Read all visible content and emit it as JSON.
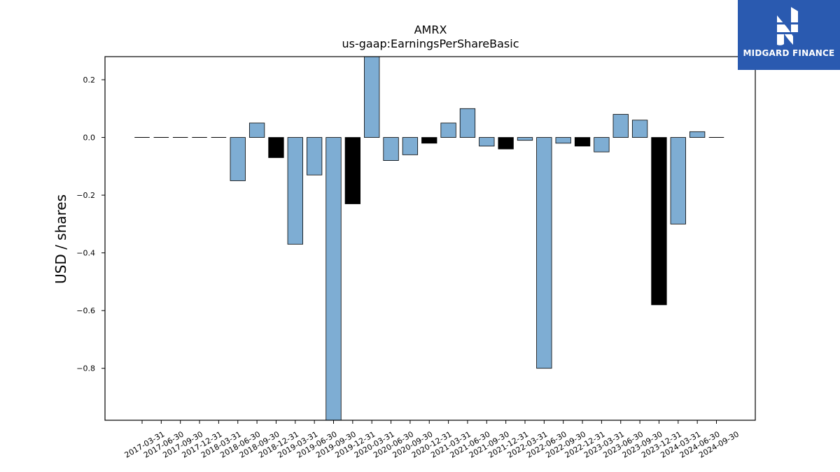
{
  "brand": {
    "name": "MIDGARD FINANCE",
    "logo_icon": "midgard-logo-icon",
    "background": "#2a5ab0"
  },
  "chart_data": {
    "type": "bar",
    "title": "AMRX",
    "subtitle": "us-gaap:EarningsPerShareBasic",
    "ylabel": "USD / shares",
    "ylim": [
      -0.98,
      0.28
    ],
    "yticks": [
      0.2,
      0.0,
      -0.2,
      -0.4,
      -0.6,
      -0.8
    ],
    "ytick_labels": [
      "0.2",
      "0.0",
      "−0.2",
      "−0.4",
      "−0.6",
      "−0.8"
    ],
    "grid": false,
    "categories": [
      "2017-03-31",
      "2017-06-30",
      "2017-09-30",
      "2017-12-31",
      "2018-03-31",
      "2018-06-30",
      "2018-09-30",
      "2018-12-31",
      "2019-03-31",
      "2019-06-30",
      "2019-09-30",
      "2019-12-31",
      "2020-03-31",
      "2020-06-30",
      "2020-09-30",
      "2020-12-31",
      "2021-03-31",
      "2021-06-30",
      "2021-09-30",
      "2021-12-31",
      "2022-03-31",
      "2022-06-30",
      "2022-09-30",
      "2022-12-31",
      "2023-03-31",
      "2023-06-30",
      "2023-09-30",
      "2023-12-31",
      "2024-03-31",
      "2024-06-30",
      "2024-09-30"
    ],
    "values": [
      0.0,
      0.0,
      0.0,
      0.0,
      0.0,
      -0.15,
      0.05,
      -0.07,
      -0.37,
      -0.13,
      -1.0,
      -0.23,
      0.31,
      -0.08,
      -0.06,
      -0.02,
      0.05,
      0.1,
      -0.03,
      -0.04,
      -0.01,
      -0.8,
      -0.02,
      -0.03,
      -0.05,
      0.08,
      0.06,
      -0.58,
      -0.3,
      0.02,
      0.0
    ],
    "colors": [
      "#7eadd3",
      "#7eadd3",
      "#7eadd3",
      "#000000",
      "#7eadd3",
      "#7eadd3",
      "#7eadd3",
      "#000000",
      "#7eadd3",
      "#7eadd3",
      "#7eadd3",
      "#000000",
      "#7eadd3",
      "#7eadd3",
      "#7eadd3",
      "#000000",
      "#7eadd3",
      "#7eadd3",
      "#7eadd3",
      "#000000",
      "#7eadd3",
      "#7eadd3",
      "#7eadd3",
      "#000000",
      "#7eadd3",
      "#7eadd3",
      "#7eadd3",
      "#000000",
      "#7eadd3",
      "#7eadd3",
      "#7eadd3"
    ]
  }
}
